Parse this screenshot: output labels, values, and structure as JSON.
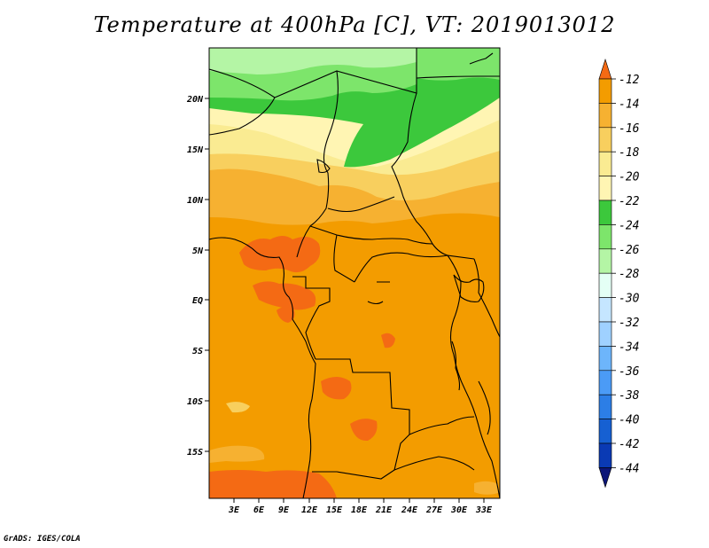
{
  "title": "Temperature at 400hPa [C], VT: 2019013012",
  "credit": "GrADS: IGES/COLA",
  "map": {
    "lat_labels": [
      "20N",
      "15N",
      "10N",
      "5N",
      "EQ",
      "5S",
      "10S",
      "15S"
    ],
    "lon_labels": [
      "3E",
      "6E",
      "9E",
      "12E",
      "15E",
      "18E",
      "21E",
      "24E",
      "27E",
      "30E",
      "33E"
    ]
  },
  "colorbar": {
    "levels": [
      "-12",
      "-14",
      "-16",
      "-18",
      "-20",
      "-22",
      "-24",
      "-26",
      "-28",
      "-30",
      "-32",
      "-34",
      "-36",
      "-38",
      "-40",
      "-42",
      "-44"
    ],
    "colors": [
      "#f46a14",
      "#f39c00",
      "#f6b131",
      "#f8cf5e",
      "#faeb92",
      "#fff5b3",
      "#3cc83c",
      "#7de56b",
      "#b4f5a5",
      "#e4fff5",
      "#c5e6ff",
      "#9fd1ff",
      "#6db5fb",
      "#4b9bf6",
      "#2c7ee6",
      "#1660d2",
      "#0a3ab4",
      "#0c1678"
    ]
  }
}
